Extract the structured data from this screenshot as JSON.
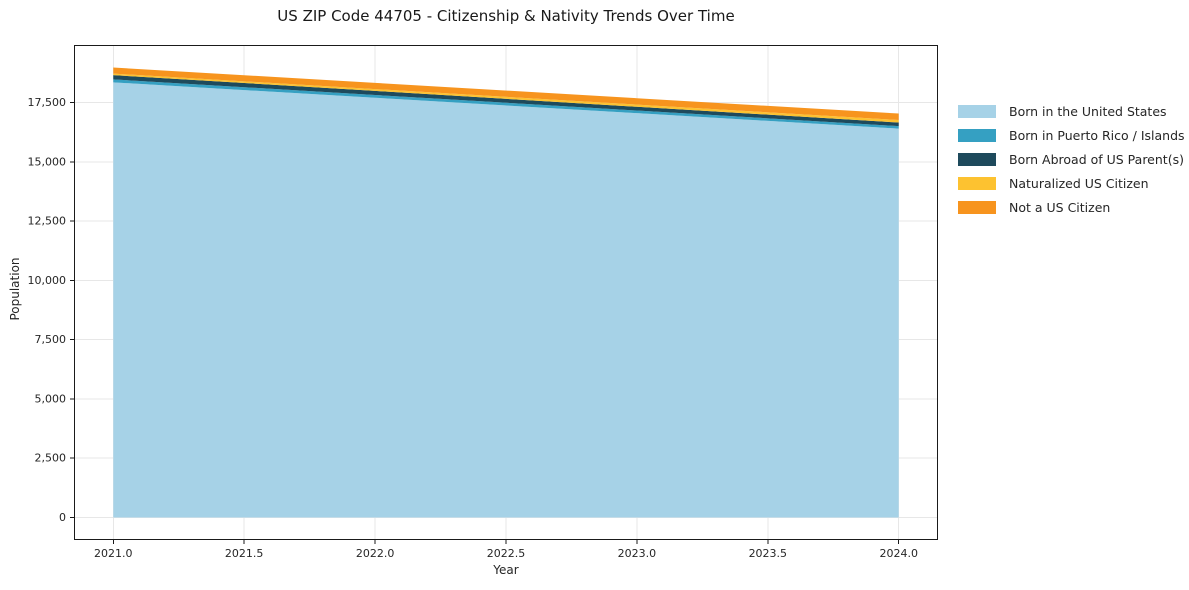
{
  "figure": {
    "background": "#ffffff",
    "frame_color": "#1a1a1a",
    "grid_color": "#e7e7e7",
    "tick_text_color": "#262626"
  },
  "chart_data": {
    "type": "area",
    "stacked": true,
    "title": "US ZIP Code 44705 - Citizenship & Nativity Trends Over Time",
    "xlabel": "Year",
    "ylabel": "Population",
    "x": [
      2021,
      2022,
      2023,
      2024
    ],
    "series": [
      {
        "name": "Born in the United States",
        "color": "#a6d2e7",
        "values": [
          18350,
          17700,
          17050,
          16400
        ]
      },
      {
        "name": "Born in Puerto Rico / Islands",
        "color": "#35a0c2",
        "values": [
          125,
          118,
          111,
          105
        ]
      },
      {
        "name": "Born Abroad of US Parent(s)",
        "color": "#1e4a5c",
        "values": [
          180,
          170,
          160,
          150
        ]
      },
      {
        "name": "Naturalized US Citizen",
        "color": "#fdc230",
        "values": [
          65,
          78,
          92,
          105
        ]
      },
      {
        "name": "Not a US Citizen",
        "color": "#f7941e",
        "values": [
          255,
          262,
          268,
          275
        ]
      }
    ],
    "totals": [
      18975,
      18328,
      17681,
      17035
    ],
    "xlim": [
      2020.85,
      2024.15
    ],
    "ylim": [
      -950,
      19925
    ],
    "xticks": {
      "values": [
        2021.0,
        2021.5,
        2022.0,
        2022.5,
        2023.0,
        2023.5,
        2024.0
      ],
      "labels": [
        "2021.0",
        "2021.5",
        "2022.0",
        "2022.5",
        "2023.0",
        "2023.5",
        "2024.0"
      ]
    },
    "yticks": {
      "values": [
        0,
        2500,
        5000,
        7500,
        10000,
        12500,
        15000,
        17500
      ],
      "labels": [
        "0",
        "2,500",
        "5,000",
        "7,500",
        "10,000",
        "12,500",
        "15,000",
        "17,500"
      ]
    },
    "grid": true,
    "legend_position": "right-outside"
  }
}
